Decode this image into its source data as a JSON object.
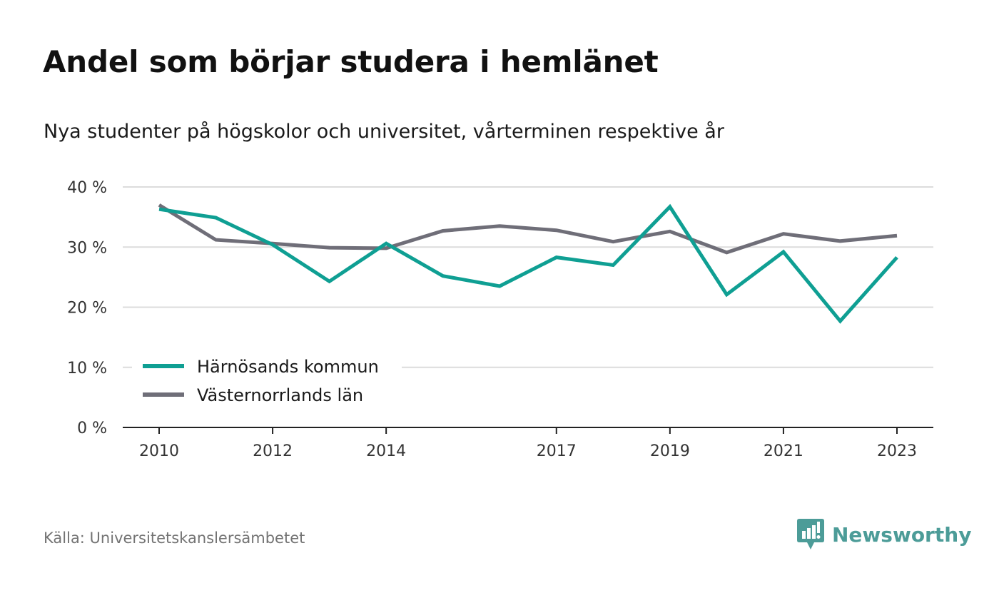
{
  "title": "Andel som börjar studera i hemlänet",
  "subtitle": "Nya studenter på högskolor och universitet, vårterminen respektive år",
  "source": "Källa: Universitetskanslersämbetet",
  "brand": {
    "name": "Newsworthy",
    "icon": "newsworthy-logo-icon",
    "color": "#4c9c98"
  },
  "chart_data": {
    "type": "line",
    "x": [
      2010,
      2011,
      2012,
      2013,
      2014,
      2015,
      2016,
      2017,
      2018,
      2019,
      2020,
      2021,
      2022,
      2023
    ],
    "x_tick_labels": [
      "2010",
      "2012",
      "2014",
      "2017",
      "2019",
      "2021",
      "2023"
    ],
    "y_ticks": [
      0,
      10,
      20,
      30,
      40
    ],
    "y_tick_labels": [
      "0 %",
      "10 %",
      "20 %",
      "30 %",
      "40 %"
    ],
    "ylim": [
      0,
      40
    ],
    "unit": "%",
    "grid": true,
    "legend_position": "bottom-left",
    "series": [
      {
        "name": "Härnösands kommun",
        "color": "#0f9f93",
        "values": [
          36.3,
          34.9,
          30.4,
          24.3,
          30.6,
          25.2,
          23.5,
          28.3,
          27.0,
          36.7,
          22.1,
          29.2,
          17.7,
          28.3
        ]
      },
      {
        "name": "Västernorrlands län",
        "color": "#6f6e78",
        "values": [
          37.0,
          31.2,
          30.6,
          29.9,
          29.8,
          32.7,
          33.5,
          32.8,
          30.9,
          32.6,
          29.1,
          32.2,
          31.0,
          31.9
        ]
      }
    ]
  }
}
